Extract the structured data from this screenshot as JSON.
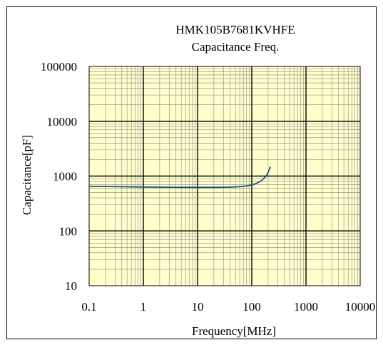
{
  "chart_data": {
    "type": "line",
    "title": "HMK105B7681KVHFE",
    "subtitle": "Capacitance Freq.",
    "xlabel": "Frequency[MHz]",
    "ylabel": "Capacitance[pF]",
    "xscale": "log",
    "yscale": "log",
    "xlim": [
      0.1,
      10000
    ],
    "ylim": [
      10,
      100000
    ],
    "x_tick_labels": [
      "0.1",
      "1",
      "10",
      "100",
      "1000",
      "10000"
    ],
    "y_tick_labels": [
      "10",
      "100",
      "1000",
      "10000",
      "100000"
    ],
    "grid": true,
    "legend": "none",
    "series": [
      {
        "x": [
          0.1,
          0.2,
          0.5,
          1,
          2,
          5,
          10,
          20,
          40,
          60,
          80,
          100,
          120,
          150,
          180,
          200,
          220
        ],
        "values": [
          650,
          645,
          638,
          632,
          628,
          624,
          622,
          622,
          628,
          640,
          660,
          690,
          730,
          820,
          980,
          1150,
          1480
        ]
      }
    ],
    "colors": {
      "plot_background": "#FFFFCC",
      "line": "#1F4E79",
      "grid_major": "#000000",
      "grid_minor": "#888888"
    }
  }
}
